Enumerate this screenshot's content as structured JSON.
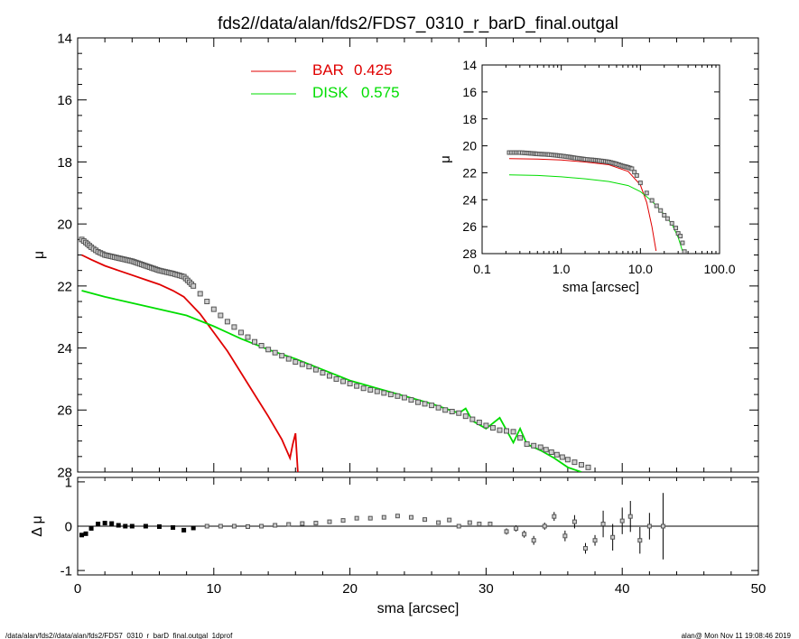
{
  "title": "fds2//data/alan/fds2/FDS7_0310_r_barD_final.outgal",
  "footer": {
    "left": "/data/alan/fds2//data/alan/fds2/FDS7_0310_r_barD_final.outgal_1dprof",
    "right": "alan@  Mon Nov 11 19:08:46 2019"
  },
  "legend": [
    {
      "name": "BAR",
      "value": "0.425",
      "color": "#e00000"
    },
    {
      "name": "DISK",
      "value": "0.575",
      "color": "#00dd00"
    }
  ],
  "colors": {
    "bar": "#e00000",
    "disk": "#00dd00",
    "data": "#555555"
  },
  "chart_data": [
    {
      "type": "line",
      "xlabel": "sma [arcsec]",
      "ylabel": "μ",
      "xlim": [
        0,
        50
      ],
      "ylim": [
        28,
        14
      ],
      "x_ticks": [
        "0",
        "10",
        "20",
        "30",
        "40",
        "50"
      ],
      "y_ticks": [
        "14",
        "16",
        "18",
        "20",
        "22",
        "24",
        "26",
        "28"
      ],
      "series": [
        {
          "name": "BAR",
          "x": [
            0.3,
            1,
            2,
            3,
            4,
            5,
            6,
            7,
            7.8,
            9,
            10,
            11,
            12,
            13,
            14,
            15,
            15.6,
            15.8,
            16.0,
            16.2
          ],
          "y": [
            21.0,
            21.15,
            21.35,
            21.5,
            21.65,
            21.8,
            21.95,
            22.15,
            22.35,
            22.9,
            23.5,
            24.1,
            24.8,
            25.5,
            26.2,
            26.95,
            27.55,
            27.1,
            26.75,
            28.2
          ]
        },
        {
          "name": "DISK",
          "x": [
            0.3,
            2,
            4,
            6,
            8,
            10,
            12,
            14,
            16,
            18,
            20,
            22,
            24,
            26,
            28,
            28.5,
            29,
            30,
            31,
            32,
            32.5,
            33,
            34,
            35,
            36,
            37
          ],
          "y": [
            22.15,
            22.35,
            22.55,
            22.75,
            22.95,
            23.3,
            23.7,
            24.05,
            24.35,
            24.7,
            25.05,
            25.3,
            25.55,
            25.8,
            26.1,
            25.95,
            26.35,
            26.6,
            26.25,
            27.05,
            26.6,
            27.1,
            27.3,
            27.55,
            27.85,
            28.0
          ]
        },
        {
          "name": "data",
          "x": [
            0.3,
            0.6,
            1,
            1.5,
            2,
            3,
            4,
            5,
            6,
            7,
            7.8,
            8.5,
            9,
            10,
            11,
            12,
            13,
            14,
            15,
            16,
            17,
            18,
            19,
            20,
            21,
            22,
            23,
            24,
            25,
            26,
            27,
            28,
            29,
            30,
            31,
            32,
            33,
            34,
            36,
            37.5
          ],
          "y": [
            20.5,
            20.6,
            20.75,
            20.9,
            21.0,
            21.1,
            21.2,
            21.35,
            21.5,
            21.6,
            21.7,
            22.0,
            22.25,
            22.75,
            23.15,
            23.5,
            23.8,
            24.05,
            24.25,
            24.45,
            24.6,
            24.8,
            25.0,
            25.15,
            25.3,
            25.4,
            25.5,
            25.6,
            25.75,
            25.85,
            26.0,
            26.1,
            26.3,
            26.5,
            26.65,
            26.7,
            27.1,
            27.2,
            27.6,
            27.85
          ]
        }
      ]
    },
    {
      "type": "line",
      "xlabel": "sma [arcsec]",
      "ylabel": "μ",
      "xscale": "log",
      "xlim": [
        0.1,
        100
      ],
      "ylim": [
        28,
        14
      ],
      "x_ticks": [
        "0.1",
        "1.0",
        "10.0",
        "100.0"
      ],
      "y_ticks": [
        "14",
        "16",
        "18",
        "20",
        "22",
        "24",
        "26",
        "28"
      ],
      "series": [
        {
          "name": "BAR",
          "x": [
            0.22,
            0.5,
            1,
            2,
            4,
            7,
            10,
            12,
            14,
            15.8
          ],
          "y": [
            20.95,
            20.98,
            21.05,
            21.2,
            21.4,
            21.9,
            22.9,
            24.2,
            26.0,
            27.8
          ]
        },
        {
          "name": "DISK",
          "x": [
            0.22,
            0.5,
            1,
            2,
            4,
            7,
            10,
            14,
            20,
            25,
            30,
            34
          ],
          "y": [
            22.15,
            22.2,
            22.3,
            22.45,
            22.65,
            22.95,
            23.4,
            24.1,
            25.1,
            25.8,
            26.8,
            27.8
          ]
        },
        {
          "name": "data",
          "x": [
            0.22,
            0.3,
            0.5,
            0.7,
            1,
            1.5,
            2,
            3,
            4,
            5,
            6,
            7,
            7.8,
            9,
            10,
            12,
            14,
            16,
            18,
            20,
            22,
            25,
            28,
            30,
            32,
            34,
            36
          ],
          "y": [
            20.5,
            20.5,
            20.6,
            20.65,
            20.75,
            20.9,
            21.0,
            21.1,
            21.2,
            21.35,
            21.5,
            21.6,
            21.7,
            22.2,
            22.75,
            23.5,
            24.05,
            24.45,
            24.8,
            25.15,
            25.4,
            25.75,
            26.1,
            26.5,
            26.7,
            27.2,
            27.85
          ]
        }
      ]
    },
    {
      "type": "scatter",
      "xlabel": "sma [arcsec]",
      "ylabel": "Δ μ",
      "xlim": [
        0,
        50
      ],
      "ylim": [
        -1.1,
        1.1
      ],
      "x_ticks": [
        "0",
        "10",
        "20",
        "30",
        "40",
        "50"
      ],
      "y_ticks": [
        "1",
        "0",
        "-1"
      ],
      "points": [
        {
          "x": 0.3,
          "y": -0.2,
          "err": 0
        },
        {
          "x": 0.6,
          "y": -0.17,
          "err": 0
        },
        {
          "x": 1.0,
          "y": -0.05,
          "err": 0
        },
        {
          "x": 1.5,
          "y": 0.05,
          "err": 0
        },
        {
          "x": 2.0,
          "y": 0.07,
          "err": 0
        },
        {
          "x": 2.5,
          "y": 0.06,
          "err": 0
        },
        {
          "x": 3.0,
          "y": 0.02,
          "err": 0
        },
        {
          "x": 3.5,
          "y": 0.0,
          "err": 0
        },
        {
          "x": 4.0,
          "y": 0.0,
          "err": 0
        },
        {
          "x": 5.0,
          "y": 0.0,
          "err": 0
        },
        {
          "x": 6.0,
          "y": -0.01,
          "err": 0
        },
        {
          "x": 7.0,
          "y": -0.03,
          "err": 0
        },
        {
          "x": 7.8,
          "y": -0.09,
          "err": 0
        },
        {
          "x": 8.5,
          "y": -0.04,
          "err": 0
        },
        {
          "x": 9.5,
          "y": 0.0,
          "err": 0
        },
        {
          "x": 10.5,
          "y": 0.0,
          "err": 0
        },
        {
          "x": 11.5,
          "y": 0.0,
          "err": 0
        },
        {
          "x": 12.5,
          "y": -0.01,
          "err": 0
        },
        {
          "x": 13.5,
          "y": 0.0,
          "err": 0
        },
        {
          "x": 14.5,
          "y": 0.02,
          "err": 0
        },
        {
          "x": 15.5,
          "y": 0.04,
          "err": 0
        },
        {
          "x": 16.5,
          "y": 0.06,
          "err": 0
        },
        {
          "x": 17.5,
          "y": 0.07,
          "err": 0
        },
        {
          "x": 18.5,
          "y": 0.1,
          "err": 0
        },
        {
          "x": 19.5,
          "y": 0.13,
          "err": 0
        },
        {
          "x": 20.5,
          "y": 0.18,
          "err": 0
        },
        {
          "x": 21.5,
          "y": 0.18,
          "err": 0
        },
        {
          "x": 22.5,
          "y": 0.2,
          "err": 0
        },
        {
          "x": 23.5,
          "y": 0.23,
          "err": 0
        },
        {
          "x": 24.5,
          "y": 0.2,
          "err": 0
        },
        {
          "x": 25.5,
          "y": 0.15,
          "err": 0
        },
        {
          "x": 26.5,
          "y": 0.08,
          "err": 0
        },
        {
          "x": 27.3,
          "y": 0.14,
          "err": 0
        },
        {
          "x": 28.0,
          "y": 0.0,
          "err": 0
        },
        {
          "x": 28.8,
          "y": 0.08,
          "err": 0
        },
        {
          "x": 29.5,
          "y": 0.05,
          "err": 0
        },
        {
          "x": 30.3,
          "y": 0.05,
          "err": 0
        },
        {
          "x": 31.5,
          "y": -0.12,
          "err": 0.07
        },
        {
          "x": 32.2,
          "y": -0.05,
          "err": 0.07
        },
        {
          "x": 32.8,
          "y": -0.18,
          "err": 0.08
        },
        {
          "x": 33.5,
          "y": -0.32,
          "err": 0.1
        },
        {
          "x": 34.3,
          "y": 0.0,
          "err": 0.08
        },
        {
          "x": 35.0,
          "y": 0.22,
          "err": 0.1
        },
        {
          "x": 35.8,
          "y": -0.22,
          "err": 0.12
        },
        {
          "x": 36.5,
          "y": 0.1,
          "err": 0.15
        },
        {
          "x": 37.3,
          "y": -0.5,
          "err": 0.12
        },
        {
          "x": 38.0,
          "y": -0.32,
          "err": 0.12
        },
        {
          "x": 38.6,
          "y": 0.05,
          "err": 0.3
        },
        {
          "x": 39.3,
          "y": -0.25,
          "err": 0.3
        },
        {
          "x": 40.0,
          "y": 0.12,
          "err": 0.3
        },
        {
          "x": 40.6,
          "y": 0.22,
          "err": 0.35
        },
        {
          "x": 41.3,
          "y": -0.32,
          "err": 0.3
        },
        {
          "x": 42.0,
          "y": 0.0,
          "err": 0.3
        },
        {
          "x": 43.0,
          "y": 0.0,
          "err": 0.75
        }
      ]
    }
  ]
}
